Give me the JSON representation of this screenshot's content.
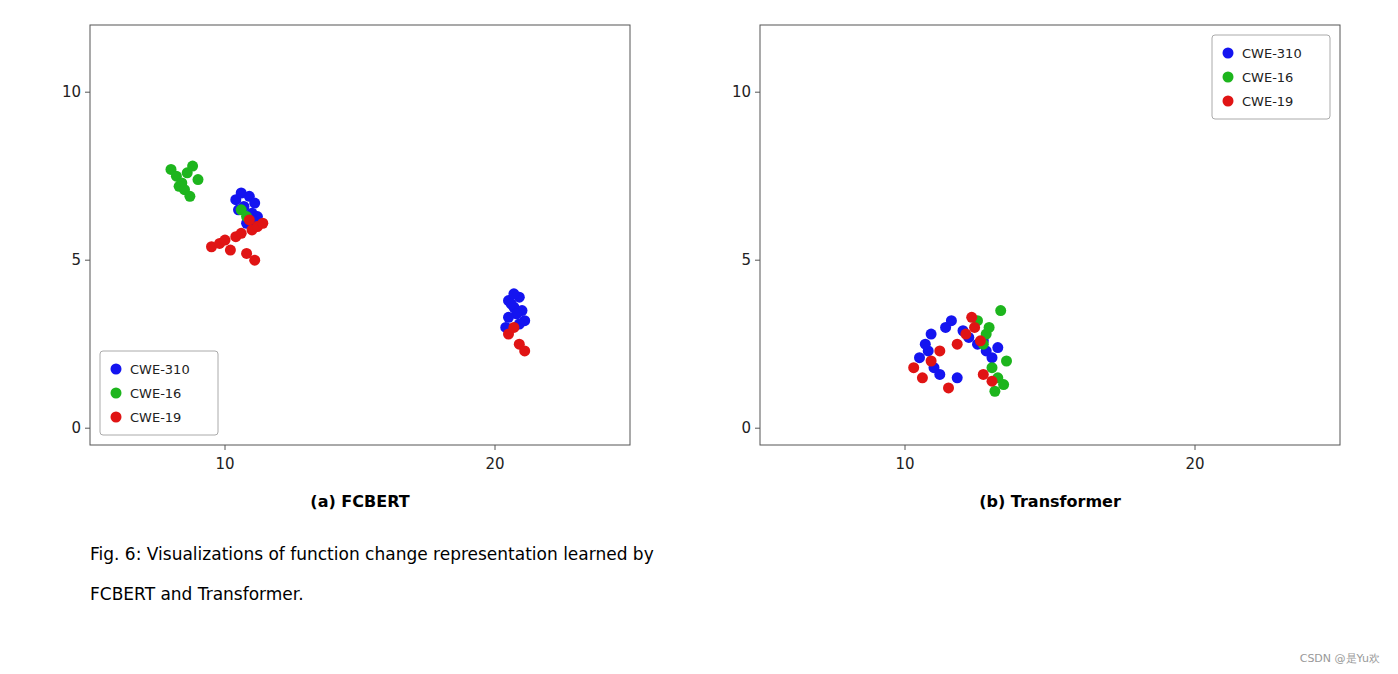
{
  "chart_data": [
    {
      "type": "scatter",
      "title": "(a) FCBERT",
      "xlim": [
        5,
        25
      ],
      "ylim": [
        -0.5,
        12
      ],
      "xticks": [
        10,
        20
      ],
      "yticks": [
        0,
        5,
        10
      ],
      "grid": false,
      "legend": "lower left",
      "series": [
        {
          "name": "CWE-310",
          "color": "#1414f0",
          "x": [
            10.4,
            10.6,
            10.5,
            10.7,
            10.9,
            11.0,
            11.1,
            11.2,
            11.0,
            10.8,
            20.5,
            20.7,
            20.9,
            21.0,
            20.8,
            20.6,
            20.5,
            21.1,
            20.9,
            20.7,
            20.4
          ],
          "values": [
            6.8,
            7.0,
            6.5,
            6.6,
            6.9,
            6.4,
            6.7,
            6.3,
            6.2,
            6.1,
            3.8,
            3.6,
            3.9,
            3.5,
            3.4,
            3.7,
            3.3,
            3.2,
            3.1,
            4.0,
            3.0
          ]
        },
        {
          "name": "CWE-16",
          "color": "#1db51d",
          "x": [
            8.0,
            8.2,
            8.4,
            8.6,
            8.8,
            9.0,
            8.3,
            8.5,
            8.7,
            10.6,
            10.8
          ],
          "values": [
            7.7,
            7.5,
            7.3,
            7.6,
            7.8,
            7.4,
            7.2,
            7.1,
            6.9,
            6.5,
            6.3
          ]
        },
        {
          "name": "CWE-19",
          "color": "#e01414",
          "x": [
            9.5,
            9.8,
            10.0,
            10.2,
            10.4,
            10.6,
            10.8,
            11.0,
            11.2,
            11.4,
            10.9,
            11.1,
            20.5,
            20.7,
            20.9,
            21.1
          ],
          "values": [
            5.4,
            5.5,
            5.6,
            5.3,
            5.7,
            5.8,
            5.2,
            5.9,
            6.0,
            6.1,
            6.2,
            5.0,
            2.8,
            3.0,
            2.5,
            2.3
          ]
        }
      ],
      "annotations": [
        "Fig. 6: Visualizations of function change representation learned by",
        "FCBERT and Transformer.",
        "CSDN @是Yu欢"
      ]
    },
    {
      "type": "scatter",
      "title": "(b) Transformer",
      "xlim": [
        5,
        25
      ],
      "ylim": [
        -0.5,
        12
      ],
      "xticks": [
        10,
        20
      ],
      "yticks": [
        0,
        5,
        10
      ],
      "grid": false,
      "legend": "upper right",
      "series": [
        {
          "name": "CWE-310",
          "color": "#1414f0",
          "x": [
            10.5,
            10.8,
            11.0,
            11.2,
            10.7,
            10.9,
            11.4,
            11.6,
            12.0,
            12.2,
            12.5,
            12.8,
            13.0,
            12.7,
            13.2,
            11.8
          ],
          "values": [
            2.1,
            2.3,
            1.8,
            1.6,
            2.5,
            2.8,
            3.0,
            3.2,
            2.9,
            2.7,
            2.5,
            2.3,
            2.1,
            2.6,
            2.4,
            1.5
          ]
        },
        {
          "name": "CWE-16",
          "color": "#1db51d",
          "x": [
            12.5,
            12.8,
            13.0,
            13.2,
            13.4,
            12.7,
            13.5,
            12.9,
            13.1,
            13.3
          ],
          "values": [
            3.2,
            2.8,
            1.8,
            1.5,
            1.3,
            2.5,
            2.0,
            3.0,
            1.1,
            3.5
          ]
        },
        {
          "name": "CWE-19",
          "color": "#e01414",
          "x": [
            10.3,
            10.6,
            10.9,
            11.2,
            11.5,
            11.8,
            12.1,
            12.4,
            12.7,
            13.0,
            12.3,
            12.6
          ],
          "values": [
            1.8,
            1.5,
            2.0,
            2.3,
            1.2,
            2.5,
            2.8,
            3.0,
            1.6,
            1.4,
            3.3,
            2.6
          ]
        }
      ]
    }
  ]
}
